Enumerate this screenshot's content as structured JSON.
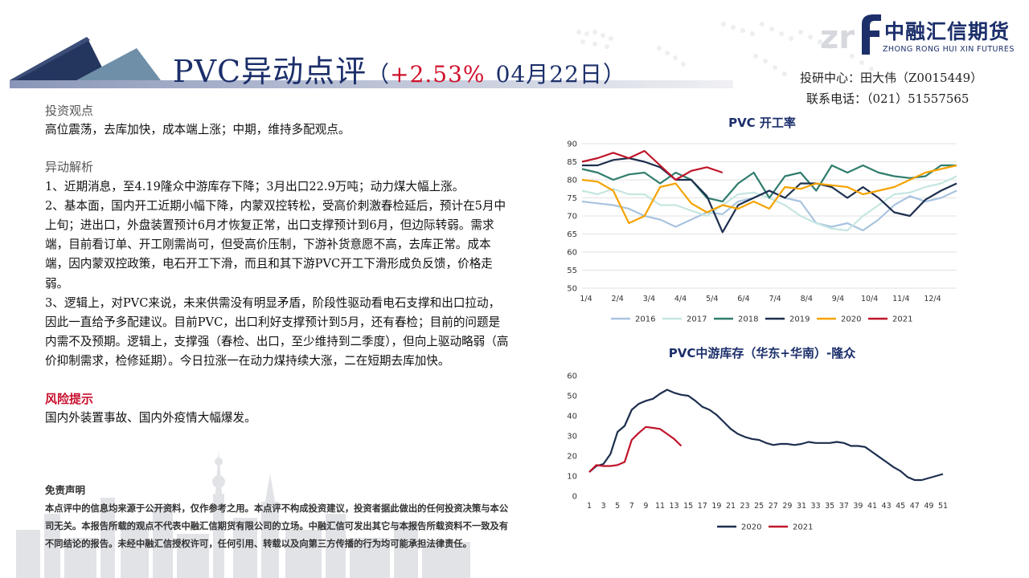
{
  "header": {
    "title_main": "PVC异动点评",
    "paren_open": "（",
    "change_pct": "+2.53%",
    "date": "04月22日",
    "paren_close": "）"
  },
  "logo": {
    "name_zh": "中融汇信期货",
    "name_en": "ZHONG RONG HUI XIN FUTURES",
    "accent_color": "#1c2f6b"
  },
  "contact": {
    "line1": "投研中心：田大伟（Z0015449）",
    "line2": "联系电话：（021）51557565"
  },
  "views": {
    "title": "投资观点",
    "text": "高位震荡，去库加快，成本端上涨；中期，维持多配观点。"
  },
  "analysis": {
    "title": "异动解析",
    "p1": "1、近期消息，至4.19隆众中游库存下降；3月出口22.9万吨；动力煤大幅上涨。",
    "p2": "2、基本面，国内开工近期小幅下降，内蒙双控转松，受高价刺激春检延后，预计在5月中上旬；进出口，外盘装置预计6月才恢复正常，出口支撑预计到6月，但边际转弱。需求端，目前看订单、开工刚需尚可，但受高价压制，下游补货意愿不高，去库正常。成本端，因内蒙双控政策，电石开工下滑，而且和其下游PVC开工下滑形成负反馈，价格走弱。",
    "p3": "3、逻辑上，对PVC来说，未来供需没有明显矛盾，阶段性驱动看电石支撑和出口拉动，因此一直给予多配建议。目前PVC，出口利好支撑预计到5月，还有春检；目前的问题是内需不及预期。逻辑上，支撑强（春检、出口，至少维持到二季度），但向上驱动略弱（高价抑制需求，检修延期）。今日拉涨一在动力煤持续大涨，二在短期去库加快。"
  },
  "risk": {
    "title": "风险提示",
    "text": "国内外装置事故、国内外疫情大幅爆发。"
  },
  "disclaimer": {
    "title": "免责声明",
    "text": "本点评中的信息均来源于公开资料，仅作参考之用。本点评不构成投资建议，投资者据此做出的任何投资决策与本公司无关。本报告所载的观点不代表中融汇信期货有限公司的立场。中融汇信可发出其它与本报告所载资料不一致及有不同结论的报告。未经中融汇信授权许可，任何引用、转载以及向第三方传播的行为均可能承担法律责任。"
  },
  "chart_data": [
    {
      "type": "line",
      "title": "PVC 开工率",
      "xlabel": "",
      "ylabel": "",
      "ylim": [
        50,
        90
      ],
      "yticks": [
        50,
        55,
        60,
        65,
        70,
        75,
        80,
        85,
        90
      ],
      "x_tick_labels": [
        "1/4",
        "2/4",
        "3/4",
        "4/4",
        "5/4",
        "6/4",
        "7/4",
        "8/4",
        "9/4",
        "10/4",
        "11/4",
        "12/4"
      ],
      "grid": true,
      "legend": "bottom",
      "series": [
        {
          "name": "2016",
          "color": "#a9c4e0",
          "values": [
            74,
            73.5,
            73,
            72,
            70,
            69,
            67,
            69,
            71,
            70.5,
            74,
            75,
            77,
            75,
            74,
            68,
            67,
            68,
            66,
            69,
            73,
            75.5,
            74,
            75,
            77
          ]
        },
        {
          "name": "2017",
          "color": "#c5e6e0",
          "values": [
            77,
            76,
            77.5,
            76,
            76,
            73,
            73,
            71.5,
            70,
            73,
            76,
            76.5,
            75,
            73,
            70,
            68,
            66.5,
            66,
            70,
            73,
            76,
            76.5,
            78,
            79,
            81
          ]
        },
        {
          "name": "2018",
          "color": "#2f7d6d",
          "values": [
            83,
            82,
            80,
            81.5,
            82,
            79,
            82,
            80,
            75,
            74,
            79,
            82,
            75,
            81,
            82,
            77,
            84,
            82,
            84,
            82,
            81,
            80.5,
            81,
            84,
            84
          ]
        },
        {
          "name": "2019",
          "color": "#1d2f4e",
          "values": [
            84,
            84,
            85.5,
            86,
            85,
            83.5,
            80,
            80,
            75.5,
            65.5,
            73,
            75,
            77,
            75,
            79,
            79,
            78,
            75,
            78,
            75,
            71,
            70,
            74.5,
            77,
            79
          ]
        },
        {
          "name": "2020",
          "color": "#f5a300",
          "values": [
            80,
            79.5,
            77,
            68,
            70,
            78,
            79,
            73.5,
            71,
            73,
            72,
            74,
            72,
            78,
            77.5,
            79,
            78.5,
            78,
            76,
            77,
            78,
            80,
            82,
            83,
            84
          ]
        },
        {
          "name": "2021",
          "color": "#c0152a",
          "values": [
            85,
            86,
            87.5,
            86,
            88,
            84,
            80,
            82.5,
            83.5,
            82
          ]
        }
      ]
    },
    {
      "type": "line",
      "title": "PVC中游库存（华东+华南）-隆众",
      "xlabel": "",
      "ylabel": "",
      "ylim": [
        0,
        60
      ],
      "yticks": [
        0,
        10,
        20,
        30,
        40,
        50,
        60
      ],
      "x_tick_labels": [
        "1",
        "3",
        "5",
        "7",
        "9",
        "11",
        "13",
        "15",
        "17",
        "19",
        "21",
        "23",
        "25",
        "27",
        "29",
        "31",
        "33",
        "35",
        "37",
        "39",
        "41",
        "43",
        "45",
        "47",
        "49",
        "51"
      ],
      "grid": false,
      "legend": "bottom",
      "series": [
        {
          "name": "2020",
          "color": "#1d2f4e",
          "x": [
            1,
            2,
            3,
            4,
            5,
            6,
            7,
            8,
            9,
            10,
            11,
            12,
            13,
            14,
            15,
            16,
            17,
            18,
            19,
            20,
            21,
            22,
            23,
            24,
            25,
            26,
            27,
            28,
            29,
            30,
            31,
            32,
            33,
            34,
            35,
            36,
            37,
            38,
            39,
            40,
            41,
            42,
            43,
            44,
            45,
            46,
            47,
            48,
            49,
            50,
            51
          ],
          "values": [
            12,
            15,
            16,
            21,
            32,
            35,
            43,
            46,
            47.5,
            48.5,
            51,
            53,
            51.5,
            50.5,
            50,
            47.5,
            44.5,
            43,
            40.5,
            37,
            33.5,
            31,
            29.5,
            28.5,
            28,
            26.5,
            25.5,
            26,
            26,
            25.5,
            26,
            27,
            26.5,
            26.5,
            26.5,
            27,
            26.5,
            25,
            25,
            24.5,
            22,
            19.5,
            17,
            14.5,
            12.5,
            9.5,
            8,
            8,
            9,
            10,
            11
          ]
        },
        {
          "name": "2021",
          "color": "#c0152a",
          "x": [
            1,
            2,
            3,
            4,
            5,
            6,
            7,
            8,
            9,
            10,
            11,
            12,
            13,
            14
          ],
          "values": [
            12,
            15.5,
            15,
            15,
            15.5,
            17,
            28,
            31.5,
            34.5,
            34,
            33.5,
            31,
            28.5,
            25
          ]
        }
      ]
    }
  ]
}
